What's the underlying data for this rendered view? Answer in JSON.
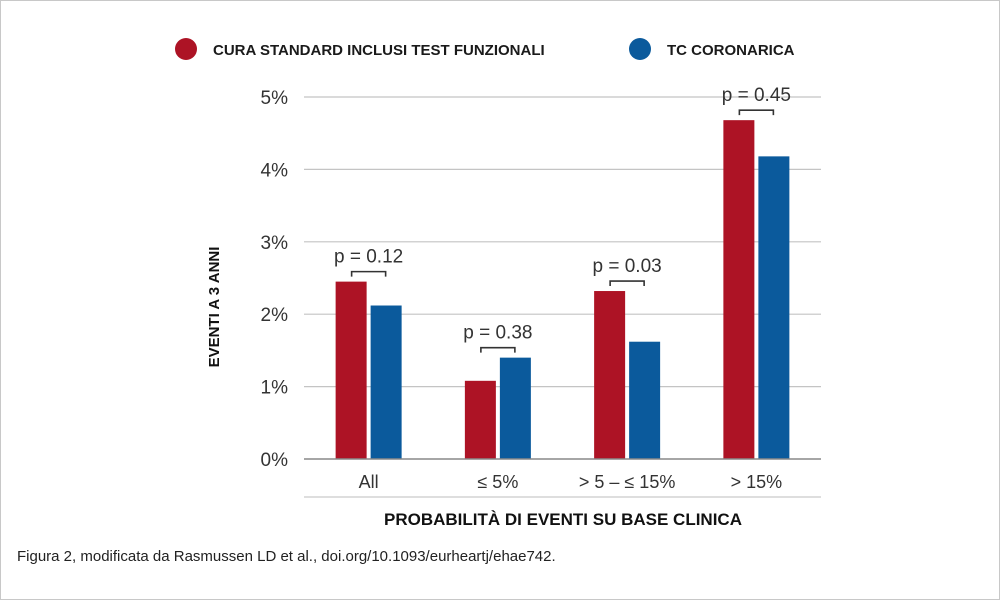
{
  "chart_data": {
    "type": "bar",
    "title": "",
    "legend_position": "top",
    "categories": [
      "All",
      "≤ 5%",
      "> 5 – ≤ 15%",
      "> 15%"
    ],
    "series": [
      {
        "name": "CURA STANDARD INCLUSI TEST FUNZIONALI",
        "color": "#ad1325",
        "values": [
          2.45,
          1.08,
          2.32,
          4.68
        ]
      },
      {
        "name": "TC CORONARICA",
        "color": "#0b5a9c",
        "values": [
          2.12,
          1.4,
          1.62,
          4.18
        ]
      }
    ],
    "annotations": [
      "p = 0.12",
      "p = 0.38",
      "p = 0.03",
      "p = 0.45"
    ],
    "ylabel": "EVENTI  A 3  ANNI",
    "xlabel": "PROBABILITÀ DI EVENTI SU BASE CLINICA",
    "ylim": [
      0,
      5
    ],
    "yticks": [
      0,
      1,
      2,
      3,
      4,
      5
    ],
    "ytick_labels": [
      "0%",
      "1%",
      "2%",
      "3%",
      "4%",
      "5%"
    ],
    "grid": true
  },
  "caption": "Figura 2, modificata da Rasmussen LD et al., doi.org/10.1093/eurheartj/ehae742."
}
